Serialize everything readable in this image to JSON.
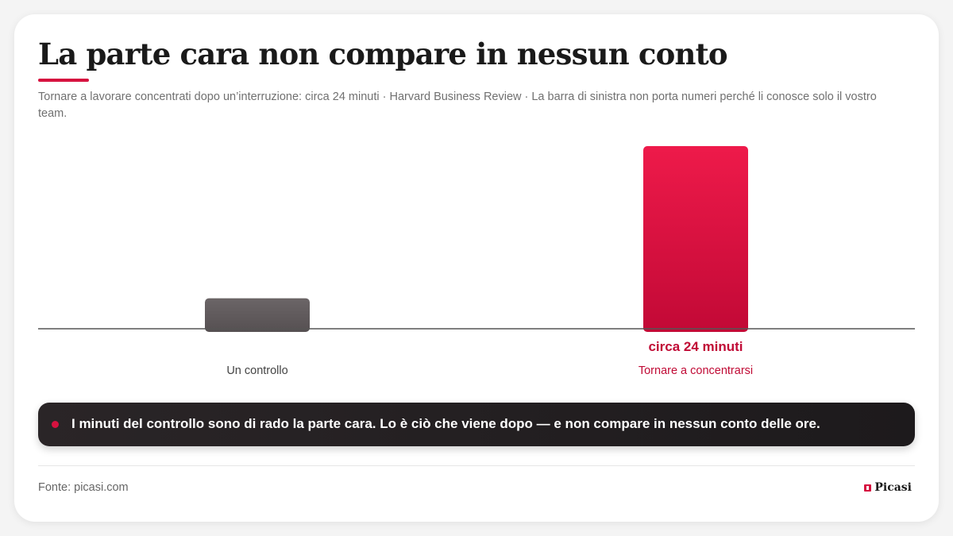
{
  "header": {
    "title": "La parte cara non compare in nessun conto",
    "subtitle": "Tornare a lavorare concentrati dopo un’interruzione: circa 24 minuti · Harvard Business Review · La barra di sinistra non porta numeri perché li conosce solo il vostro team."
  },
  "colors": {
    "accent": "#d6123f",
    "accent_dark": "#c00a35",
    "neutral_bar": "#5e585a",
    "baseline": "#555555",
    "muted_text": "#444444",
    "callout_bg": "#231f21"
  },
  "chart_data": {
    "type": "bar",
    "categories": [
      "Un controllo",
      "Tornare a concentrarsi"
    ],
    "values": [
      4,
      24
    ],
    "value_labels": [
      "",
      "circa 24 minuti"
    ],
    "highlight_index": 1,
    "unit": "minuti",
    "ylim": [
      0,
      24
    ],
    "grid": false,
    "legend": "none",
    "title": "La parte cara non compare in nessun conto",
    "xlabel": "",
    "ylabel": ""
  },
  "callout": {
    "text": "I minuti del controllo sono di rado la parte cara. Lo è ciò che viene dopo — e non compare in nessun conto delle ore."
  },
  "footer": {
    "source": "Fonte: picasi.com",
    "brand": "Picasi",
    "brand_icon": "picasi-logo-icon"
  }
}
